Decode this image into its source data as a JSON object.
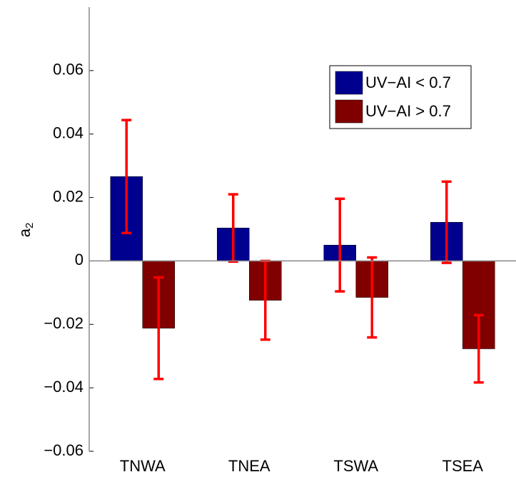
{
  "chart_data": {
    "type": "bar",
    "y_label": "a",
    "y_label_subscript": "2",
    "categories": [
      "TNWA",
      "TNEA",
      "TSWA",
      "TSEA"
    ],
    "series": [
      {
        "name": "UV−AI < 0.7",
        "color": "#00008f",
        "values": [
          0.0266,
          0.0104,
          0.005,
          0.0122
        ],
        "errors": [
          0.0178,
          0.0106,
          0.0146,
          0.0128
        ]
      },
      {
        "name": "UV−AI > 0.7",
        "color": "#800000",
        "values": [
          -0.0212,
          -0.0124,
          -0.0115,
          -0.0277
        ],
        "errors": [
          0.016,
          0.0124,
          0.0126,
          0.0106
        ]
      }
    ],
    "error_color": "#ff0000",
    "ylim": [
      -0.06,
      0.08
    ],
    "yticks": [
      {
        "value": -0.06,
        "label": "−0.06"
      },
      {
        "value": -0.04,
        "label": "−0.04"
      },
      {
        "value": -0.02,
        "label": "−0.02"
      },
      0,
      0.02,
      0.04,
      0.06
    ],
    "legend": "upper right"
  }
}
